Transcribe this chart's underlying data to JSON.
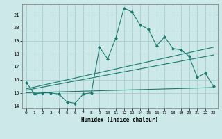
{
  "title": "",
  "xlabel": "Humidex (Indice chaleur)",
  "background_color": "#cce8e8",
  "grid_color": "#aacccc",
  "line_color": "#1a7a6e",
  "xlim": [
    -0.5,
    23.5
  ],
  "ylim": [
    13.8,
    21.8
  ],
  "yticks": [
    14,
    15,
    16,
    17,
    18,
    19,
    20,
    21
  ],
  "xticks": [
    0,
    1,
    2,
    3,
    4,
    5,
    6,
    7,
    8,
    9,
    10,
    11,
    12,
    13,
    14,
    15,
    16,
    17,
    18,
    19,
    20,
    21,
    22,
    23
  ],
  "series": [
    {
      "x": [
        0,
        1,
        2,
        3,
        4,
        5,
        6,
        7,
        8,
        9,
        10,
        11,
        12,
        13,
        14,
        15,
        16,
        17,
        18,
        19,
        20,
        21,
        22,
        23
      ],
      "y": [
        15.8,
        14.9,
        15.0,
        15.0,
        14.9,
        14.3,
        14.2,
        14.9,
        15.0,
        18.5,
        17.6,
        19.2,
        21.5,
        21.2,
        20.2,
        19.9,
        18.6,
        19.3,
        18.4,
        18.3,
        17.8,
        16.2,
        16.5,
        15.5
      ],
      "marker": true
    },
    {
      "x": [
        0,
        23
      ],
      "y": [
        15.0,
        15.4
      ],
      "marker": false
    },
    {
      "x": [
        0,
        23
      ],
      "y": [
        15.2,
        17.9
      ],
      "marker": false
    },
    {
      "x": [
        0,
        23
      ],
      "y": [
        15.3,
        18.5
      ],
      "marker": false
    }
  ],
  "figsize": [
    3.2,
    2.0
  ],
  "dpi": 100
}
